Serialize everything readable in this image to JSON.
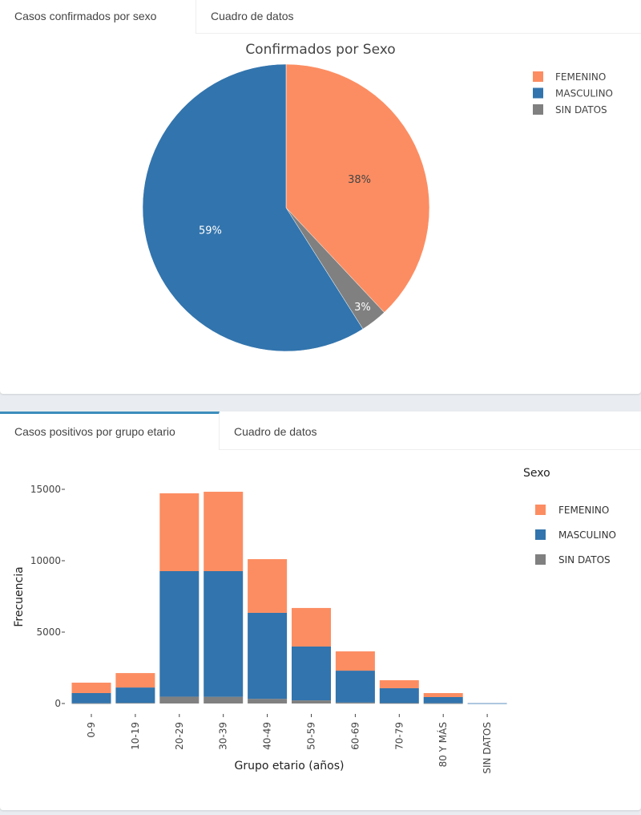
{
  "panel1": {
    "tabs": [
      {
        "label": "Casos confirmados por sexo",
        "active": true
      },
      {
        "label": "Cuadro de datos",
        "active": false
      }
    ]
  },
  "panel2": {
    "tabs": [
      {
        "label": "Casos positivos por grupo etario",
        "active": true
      },
      {
        "label": "Cuadro de datos",
        "active": false
      }
    ]
  },
  "colors": {
    "FEMENINO": "#fc8d62",
    "MASCULINO": "#3274ad",
    "SIN DATOS": "#808080",
    "tab_accent": "#3c8dbc"
  },
  "chart_data": [
    {
      "type": "pie",
      "title": "Confirmados por Sexo",
      "labels": [
        "FEMENINO",
        "SIN DATOS",
        "MASCULINO"
      ],
      "values": [
        38,
        3,
        59
      ],
      "text_labels": [
        "38%",
        "3%",
        "59%"
      ],
      "legend": [
        "FEMENINO",
        "MASCULINO",
        "SIN DATOS"
      ],
      "legend_placement": "top-right",
      "direction": "clockwise",
      "start": "12 o'clock"
    },
    {
      "type": "bar",
      "stacked": true,
      "title": "",
      "xlabel": "Grupo etario (años)",
      "ylabel": "Frecuencia",
      "ylim": [
        0,
        15500
      ],
      "yticks": [
        0,
        5000,
        10000,
        15000
      ],
      "ytick_labels": [
        "0",
        "5000",
        "10000",
        "15000"
      ],
      "categories": [
        "0-9",
        "10-19",
        "20-29",
        "30-39",
        "40-49",
        "50-59",
        "60-69",
        "70-79",
        "80 Y MÁS",
        "SIN DATOS"
      ],
      "legend_title": "Sexo",
      "legend": [
        "FEMENINO",
        "MASCULINO",
        "SIN DATOS"
      ],
      "legend_placement": "right",
      "series": [
        {
          "name": "SIN DATOS",
          "values": [
            20,
            40,
            480,
            470,
            330,
            220,
            70,
            30,
            20,
            0
          ]
        },
        {
          "name": "MASCULINO",
          "values": [
            710,
            1080,
            8790,
            8800,
            6020,
            3770,
            2230,
            1040,
            430,
            20
          ]
        },
        {
          "name": "FEMENINO",
          "values": [
            730,
            1010,
            5450,
            5560,
            3760,
            2700,
            1350,
            560,
            280,
            0
          ]
        }
      ]
    }
  ]
}
